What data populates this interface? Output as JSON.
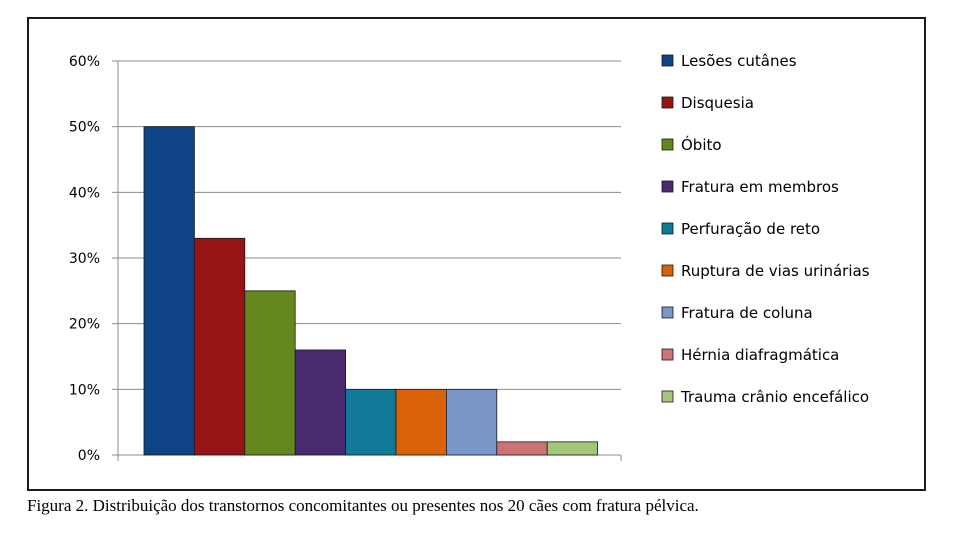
{
  "caption": "Figura 2. Distribuição dos transtornos concomitantes ou presentes nos 20 cães com fratura pélvica.",
  "chart_data": {
    "type": "bar",
    "title": "",
    "xlabel": "",
    "ylabel": "",
    "ylim": [
      0,
      60
    ],
    "yticks": [
      "0%",
      "10%",
      "20%",
      "30%",
      "40%",
      "50%",
      "60%"
    ],
    "grid": true,
    "legend_position": "right",
    "series": [
      {
        "name": "Lesões cutânes",
        "value": 50,
        "color": "#0e4486"
      },
      {
        "name": "Disquesia",
        "value": 33,
        "color": "#961414"
      },
      {
        "name": "Óbito",
        "value": 25,
        "color": "#64881e"
      },
      {
        "name": "Fratura em membros",
        "value": 16,
        "color": "#4a2a6e"
      },
      {
        "name": "Perfuração de reto",
        "value": 10,
        "color": "#117a98"
      },
      {
        "name": "Ruptura de vias urinárias",
        "value": 10,
        "color": "#d96207"
      },
      {
        "name": "Fratura de coluna",
        "value": 10,
        "color": "#7a97c9"
      },
      {
        "name": "Hérnia diafragmática",
        "value": 2,
        "color": "#cd7373"
      },
      {
        "name": "Trauma crânio encefálico",
        "value": 2,
        "color": "#a3c67b"
      }
    ]
  }
}
